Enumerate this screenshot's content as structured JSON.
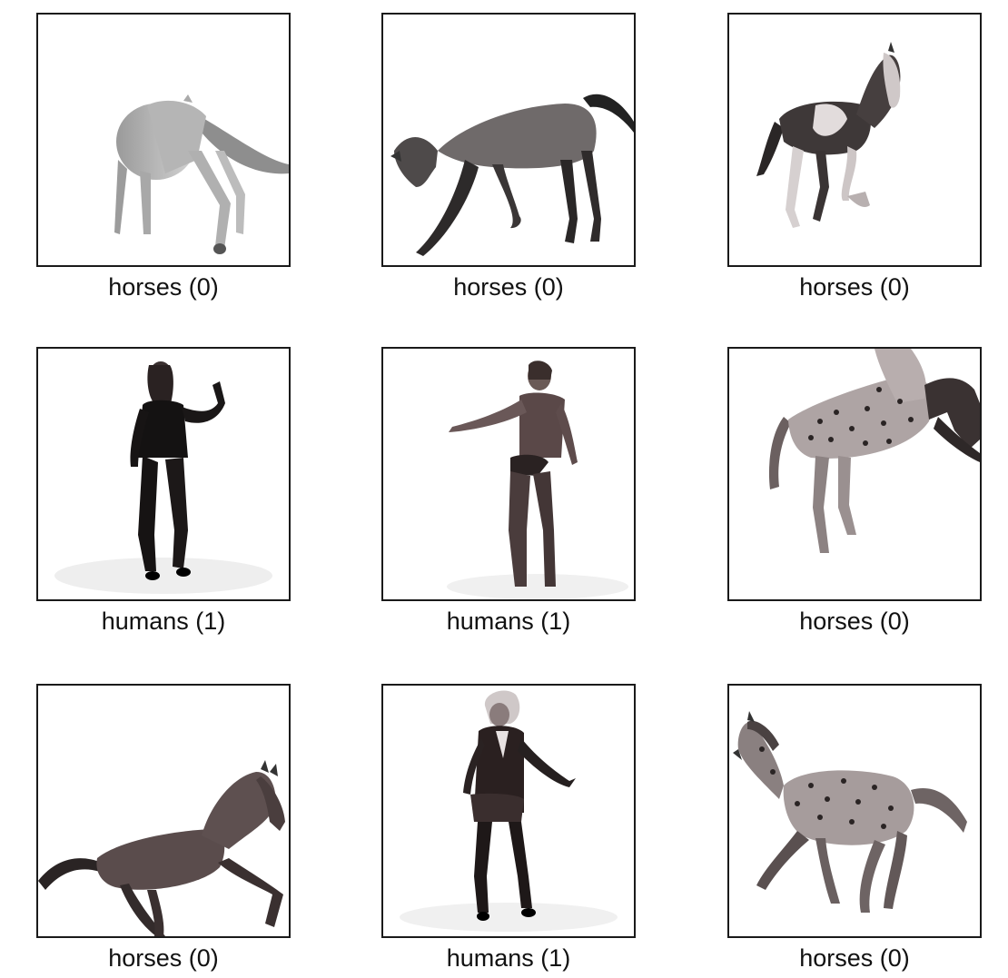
{
  "grid": {
    "items": [
      {
        "caption": "horses (0)",
        "subject": "horse"
      },
      {
        "caption": "horses (0)",
        "subject": "horse"
      },
      {
        "caption": "horses (0)",
        "subject": "horse"
      },
      {
        "caption": "humans (1)",
        "subject": "human"
      },
      {
        "caption": "humans (1)",
        "subject": "human"
      },
      {
        "caption": "horses (0)",
        "subject": "horse"
      },
      {
        "caption": "horses (0)",
        "subject": "horse"
      },
      {
        "caption": "humans (1)",
        "subject": "human"
      },
      {
        "caption": "horses (0)",
        "subject": "horse"
      }
    ]
  }
}
